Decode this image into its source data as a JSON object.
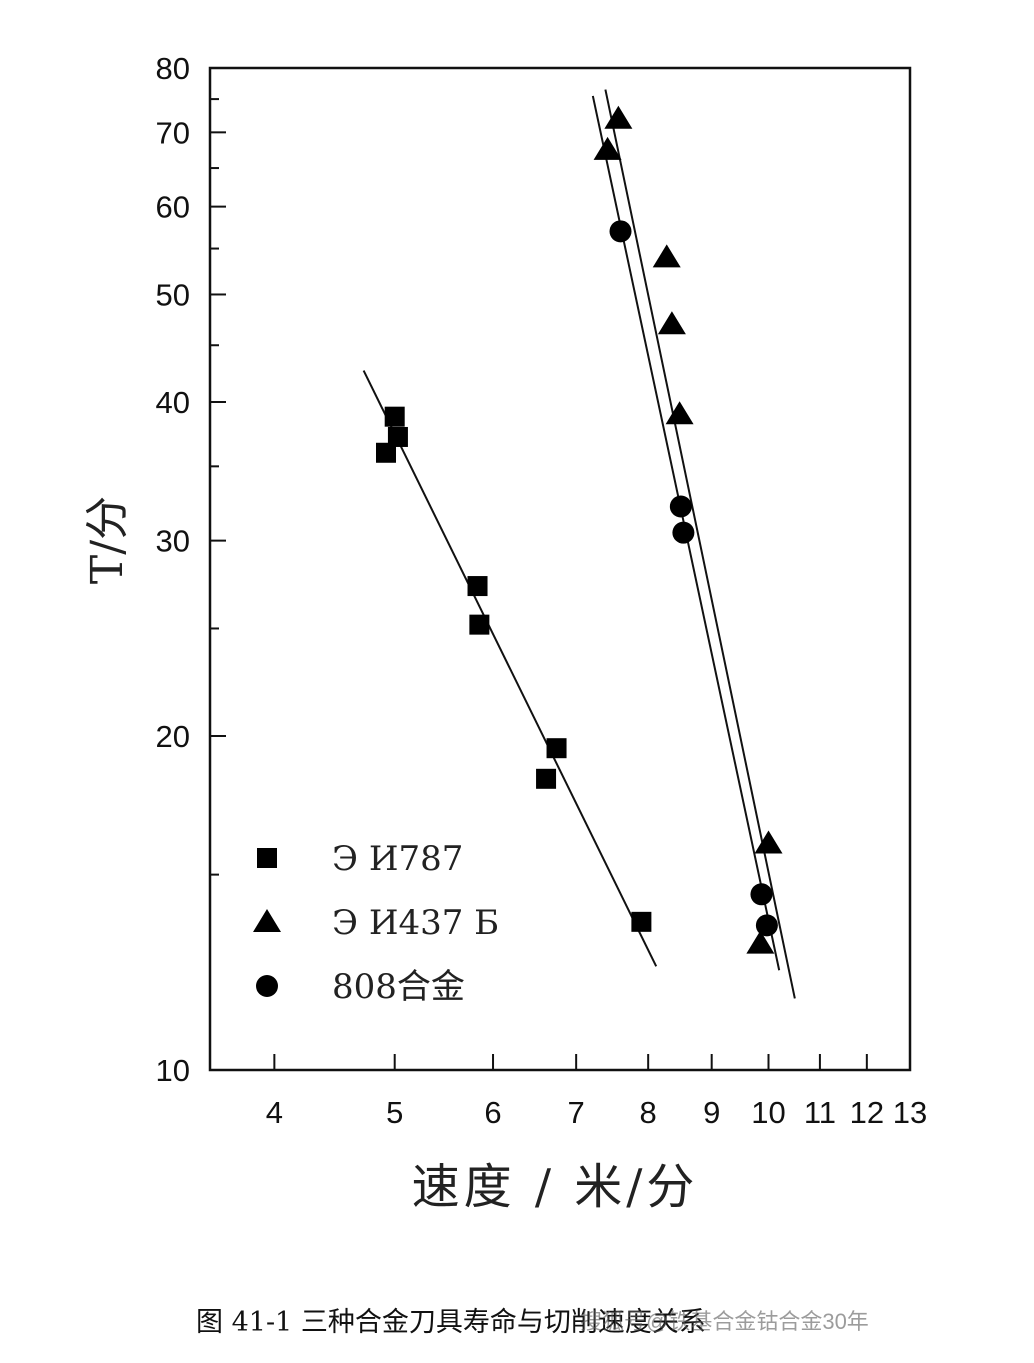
{
  "chart_data": {
    "type": "scatter",
    "xlabel": "速度 / 米/分",
    "ylabel": "T/分",
    "x_scale": "log",
    "y_scale": "log",
    "xlim": [
      3.55,
      13
    ],
    "ylim": [
      10,
      80
    ],
    "x_ticks": [
      4,
      5,
      6,
      7,
      8,
      9,
      10,
      11,
      12,
      13
    ],
    "y_ticks": [
      10,
      20,
      30,
      40,
      50,
      60,
      70,
      80
    ],
    "grid": false,
    "legend_placement": "bottom-left",
    "series": [
      {
        "name": "Э И787",
        "marker": "square",
        "points": [
          [
            4.92,
            36
          ],
          [
            5.0,
            38.8
          ],
          [
            5.03,
            37.2
          ],
          [
            5.83,
            27.3
          ],
          [
            5.85,
            25.2
          ],
          [
            6.62,
            18.3
          ],
          [
            6.75,
            19.5
          ],
          [
            7.9,
            13.6
          ]
        ],
        "fit_line": [
          [
            4.72,
            42.7
          ],
          [
            8.12,
            12.4
          ]
        ]
      },
      {
        "name": "Э И437 Б",
        "marker": "triangle",
        "points": [
          [
            7.42,
            67.5
          ],
          [
            7.57,
            72.0
          ],
          [
            8.28,
            54.0
          ],
          [
            8.36,
            47.0
          ],
          [
            8.48,
            39.0
          ],
          [
            10.0,
            16.0
          ],
          [
            9.85,
            13.0
          ]
        ],
        "fit_line": [
          [
            7.39,
            76.5
          ],
          [
            10.5,
            11.6
          ]
        ]
      },
      {
        "name": "808合金",
        "marker": "circle",
        "points": [
          [
            7.6,
            57.0
          ],
          [
            8.5,
            32.2
          ],
          [
            8.54,
            30.5
          ],
          [
            9.87,
            14.4
          ],
          [
            9.97,
            13.5
          ]
        ],
        "fit_line": [
          [
            7.22,
            75.5
          ],
          [
            10.2,
            12.3
          ]
        ]
      }
    ]
  },
  "caption": {
    "text": "图 41-1    三种合金刀具寿命与切削速度关系",
    "watermark": "搜狐号@铁基合金钴合金30年"
  }
}
